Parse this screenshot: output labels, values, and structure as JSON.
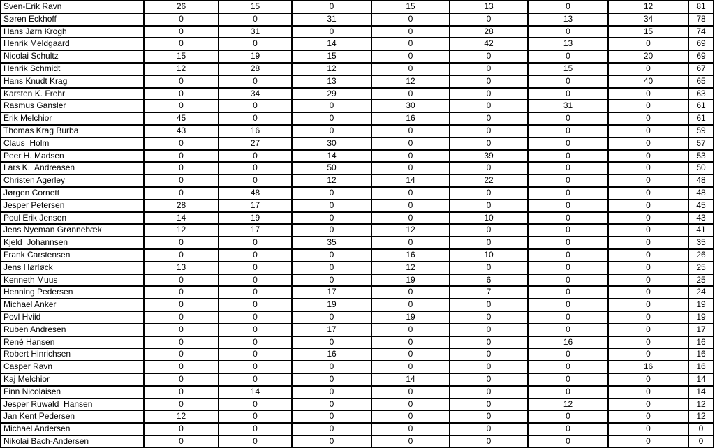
{
  "colors": {
    "background": "#ffffff",
    "border": "#000000",
    "text": "#000000"
  },
  "table": {
    "rows": [
      {
        "name": "Sven-Erik Ravn",
        "values": [
          26,
          15,
          0,
          15,
          13,
          0,
          12
        ],
        "total": 81
      },
      {
        "name": "Søren Eckhoff",
        "values": [
          0,
          0,
          31,
          0,
          0,
          13,
          34
        ],
        "total": 78
      },
      {
        "name": "Hans Jørn Krogh",
        "values": [
          0,
          31,
          0,
          0,
          28,
          0,
          15
        ],
        "total": 74
      },
      {
        "name": "Henrik Meldgaard",
        "values": [
          0,
          0,
          14,
          0,
          42,
          13,
          0
        ],
        "total": 69
      },
      {
        "name": "Nicolai Schultz",
        "values": [
          15,
          19,
          15,
          0,
          0,
          0,
          20
        ],
        "total": 69
      },
      {
        "name": "Henrik Schmidt",
        "values": [
          12,
          28,
          12,
          0,
          0,
          15,
          0
        ],
        "total": 67
      },
      {
        "name": "Hans Knudt Krag",
        "values": [
          0,
          0,
          13,
          12,
          0,
          0,
          40
        ],
        "total": 65
      },
      {
        "name": "Karsten K. Frehr",
        "values": [
          0,
          34,
          29,
          0,
          0,
          0,
          0
        ],
        "total": 63
      },
      {
        "name": "Rasmus Gansler",
        "values": [
          0,
          0,
          0,
          30,
          0,
          31,
          0
        ],
        "total": 61
      },
      {
        "name": "Erik Melchior",
        "values": [
          45,
          0,
          0,
          16,
          0,
          0,
          0
        ],
        "total": 61
      },
      {
        "name": "Thomas Krag Burba",
        "values": [
          43,
          16,
          0,
          0,
          0,
          0,
          0
        ],
        "total": 59
      },
      {
        "name": "Claus  Holm",
        "values": [
          0,
          27,
          30,
          0,
          0,
          0,
          0
        ],
        "total": 57
      },
      {
        "name": "Peer H. Madsen",
        "values": [
          0,
          0,
          14,
          0,
          39,
          0,
          0
        ],
        "total": 53
      },
      {
        "name": "Lars K.  Andreasen",
        "values": [
          0,
          0,
          50,
          0,
          0,
          0,
          0
        ],
        "total": 50
      },
      {
        "name": "Christen Agerley",
        "values": [
          0,
          0,
          12,
          14,
          22,
          0,
          0
        ],
        "total": 48
      },
      {
        "name": "Jørgen Cornett",
        "values": [
          0,
          48,
          0,
          0,
          0,
          0,
          0
        ],
        "total": 48
      },
      {
        "name": "Jesper Petersen",
        "values": [
          28,
          17,
          0,
          0,
          0,
          0,
          0
        ],
        "total": 45
      },
      {
        "name": "Poul Erik Jensen",
        "values": [
          14,
          19,
          0,
          0,
          10,
          0,
          0
        ],
        "total": 43
      },
      {
        "name": "Jens Nyeman Grønnebæk",
        "values": [
          12,
          17,
          0,
          12,
          0,
          0,
          0
        ],
        "total": 41
      },
      {
        "name": "Kjeld  Johannsen",
        "values": [
          0,
          0,
          35,
          0,
          0,
          0,
          0
        ],
        "total": 35
      },
      {
        "name": "Frank Carstensen",
        "values": [
          0,
          0,
          0,
          16,
          10,
          0,
          0
        ],
        "total": 26
      },
      {
        "name": "Jens Hørløck",
        "values": [
          13,
          0,
          0,
          12,
          0,
          0,
          0
        ],
        "total": 25
      },
      {
        "name": "Kenneth Muus",
        "values": [
          0,
          0,
          0,
          19,
          6,
          0,
          0
        ],
        "total": 25
      },
      {
        "name": "Henning Pedersen",
        "values": [
          0,
          0,
          17,
          0,
          7,
          0,
          0
        ],
        "total": 24
      },
      {
        "name": "Michael Anker",
        "values": [
          0,
          0,
          19,
          0,
          0,
          0,
          0
        ],
        "total": 19
      },
      {
        "name": "Povl Hviid",
        "values": [
          0,
          0,
          0,
          19,
          0,
          0,
          0
        ],
        "total": 19
      },
      {
        "name": "Ruben Andresen",
        "values": [
          0,
          0,
          17,
          0,
          0,
          0,
          0
        ],
        "total": 17
      },
      {
        "name": "René Hansen",
        "values": [
          0,
          0,
          0,
          0,
          0,
          16,
          0
        ],
        "total": 16
      },
      {
        "name": "Robert Hinrichsen",
        "values": [
          0,
          0,
          16,
          0,
          0,
          0,
          0
        ],
        "total": 16
      },
      {
        "name": "Casper Ravn",
        "values": [
          0,
          0,
          0,
          0,
          0,
          0,
          16
        ],
        "total": 16
      },
      {
        "name": "Kaj Melchior",
        "values": [
          0,
          0,
          0,
          14,
          0,
          0,
          0
        ],
        "total": 14
      },
      {
        "name": "Finn Nicolaisen",
        "values": [
          0,
          14,
          0,
          0,
          0,
          0,
          0
        ],
        "total": 14
      },
      {
        "name": "Jesper Ruwald  Hansen",
        "values": [
          0,
          0,
          0,
          0,
          0,
          12,
          0
        ],
        "total": 12
      },
      {
        "name": "Jan Kent Pedersen",
        "values": [
          12,
          0,
          0,
          0,
          0,
          0,
          0
        ],
        "total": 12
      },
      {
        "name": "Michael Andersen",
        "values": [
          0,
          0,
          0,
          0,
          0,
          0,
          0
        ],
        "total": 0
      },
      {
        "name": "Nikolai Bach-Andersen",
        "values": [
          0,
          0,
          0,
          0,
          0,
          0,
          0
        ],
        "total": 0
      }
    ]
  }
}
